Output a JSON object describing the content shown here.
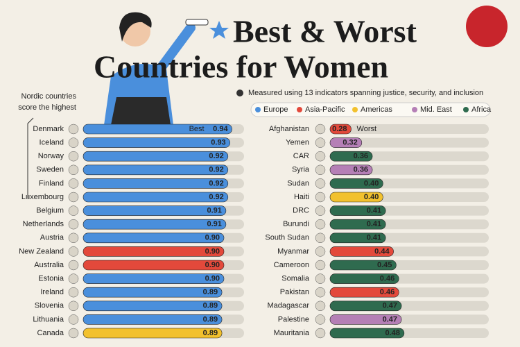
{
  "header": {
    "title_line1": "Best & Worst",
    "title_line2": "Countries for Women",
    "subtitle": "Measured using 13 indicators spanning justice, security, and inclusion",
    "note": [
      "Nordic countries",
      "score the highest"
    ]
  },
  "legend": [
    {
      "name": "Europe",
      "color": "#4a8fdc"
    },
    {
      "name": "Asia-Pacific",
      "color": "#e3493b"
    },
    {
      "name": "Americas",
      "color": "#f2c12e"
    },
    {
      "name": "Mid. East",
      "color": "#b57fb6"
    },
    {
      "name": "Africa",
      "color": "#2f6b4f"
    }
  ],
  "chart_data": [
    {
      "type": "bar",
      "annotation": "Best",
      "xlim": [
        0.2,
        1.0
      ],
      "categories": [
        "Denmark",
        "Iceland",
        "Norway",
        "Sweden",
        "Finland",
        "Luxembourg",
        "Belgium",
        "Netherlands",
        "Austria",
        "New Zealand",
        "Australia",
        "Estonia",
        "Ireland",
        "Slovenia",
        "Lithuania",
        "Canada"
      ],
      "values": [
        0.94,
        0.93,
        0.92,
        0.92,
        0.92,
        0.92,
        0.91,
        0.91,
        0.9,
        0.9,
        0.9,
        0.9,
        0.89,
        0.89,
        0.89,
        0.89
      ],
      "value_labels": [
        "0.94",
        "0.93",
        "0.92",
        "0.92",
        "0.92",
        "0.92",
        "0.91",
        "0.91",
        "0.90",
        "0.90",
        "0.90",
        "0.90",
        "0.89",
        "0.89",
        "0.89",
        "0.89"
      ],
      "colors": [
        "#4a8fdc",
        "#4a8fdc",
        "#4a8fdc",
        "#4a8fdc",
        "#4a8fdc",
        "#4a8fdc",
        "#4a8fdc",
        "#4a8fdc",
        "#4a8fdc",
        "#e3493b",
        "#e3493b",
        "#4a8fdc",
        "#4a8fdc",
        "#4a8fdc",
        "#4a8fdc",
        "#f2c12e"
      ]
    },
    {
      "type": "bar",
      "annotation": "Worst",
      "xlim": [
        0.2,
        0.8
      ],
      "categories": [
        "Afghanistan",
        "Yemen",
        "CAR",
        "Syria",
        "Sudan",
        "Haiti",
        "DRC",
        "Burundi",
        "South Sudan",
        "Myanmar",
        "Cameroon",
        "Somalia",
        "Pakistan",
        "Madagascar",
        "Palestine",
        "Mauritania"
      ],
      "values": [
        0.28,
        0.32,
        0.36,
        0.36,
        0.4,
        0.4,
        0.41,
        0.41,
        0.41,
        0.44,
        0.45,
        0.46,
        0.46,
        0.47,
        0.47,
        0.48
      ],
      "value_labels": [
        "0.28",
        "0.32",
        "0.36",
        "0.36",
        "0.40",
        "0.40",
        "0.41",
        "0.41",
        "0.41",
        "0.44",
        "0.45",
        "0.46",
        "0.46",
        "0.47",
        "0.47",
        "0.48"
      ],
      "colors": [
        "#e3493b",
        "#b57fb6",
        "#2f6b4f",
        "#b57fb6",
        "#2f6b4f",
        "#f2c12e",
        "#2f6b4f",
        "#2f6b4f",
        "#2f6b4f",
        "#e3493b",
        "#2f6b4f",
        "#2f6b4f",
        "#e3493b",
        "#2f6b4f",
        "#b57fb6",
        "#2f6b4f"
      ]
    }
  ]
}
